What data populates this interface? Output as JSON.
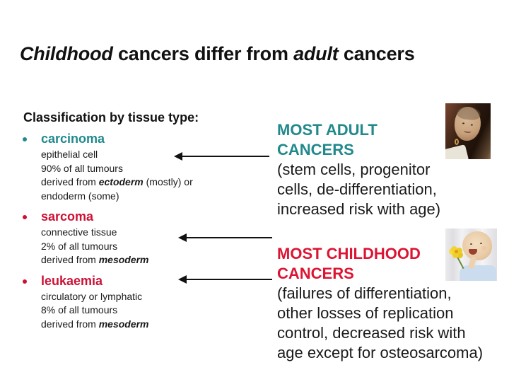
{
  "colors": {
    "teal": "#21898C",
    "red": "#CC1135",
    "red_bright": "#DC1433",
    "text": "#1A1A1A",
    "arrow": "#111111"
  },
  "title": {
    "segments": [
      {
        "text": "Childhood",
        "italic": true
      },
      {
        "text": " cancers differ from ",
        "italic": false
      },
      {
        "text": "adult",
        "italic": true
      },
      {
        "text": " cancers",
        "italic": false
      }
    ]
  },
  "left": {
    "heading": "Classification by tissue type:",
    "items": [
      {
        "term": "carcinoma",
        "term_color": "teal",
        "bullet_color": "teal",
        "lines": [
          "epithelial cell",
          "90% of all tumours",
          "derived from **ectoderm** (mostly) or",
          "endoderm (some)"
        ]
      },
      {
        "term": "sarcoma",
        "term_color": "red",
        "bullet_color": "red",
        "lines": [
          "connective tissue",
          "2% of all tumours",
          "derived from **mesoderm**"
        ]
      },
      {
        "term": "leukaemia",
        "term_color": "red",
        "bullet_color": "red",
        "lines": [
          "circulatory or lymphatic",
          "8% of all tumours",
          "derived from **mesoderm**"
        ]
      }
    ]
  },
  "right": {
    "blocks": [
      {
        "heading_lines": [
          "MOST ADULT",
          "CANCERS"
        ],
        "heading_color": "teal",
        "body_lines": [
          "(stem cells, progenitor",
          "cells, de-differentiation,",
          "increased risk with age)"
        ]
      },
      {
        "heading_lines": [
          "MOST CHILDHOOD",
          "CANCERS"
        ],
        "heading_color": "red_bright",
        "body_lines": [
          "(failures of differentiation,",
          "other losses of replication",
          "control, decreased risk with",
          "age except for osteosarcoma)"
        ]
      }
    ]
  },
  "icons": {
    "arrows": [
      "arrow-adult-to-carcinoma",
      "arrow-childhood-to-sarcoma",
      "arrow-childhood-to-leukaemia"
    ],
    "photos": [
      "adult-patient-photo",
      "child-patient-photo"
    ],
    "flower": "daffodil-flower-icon"
  }
}
